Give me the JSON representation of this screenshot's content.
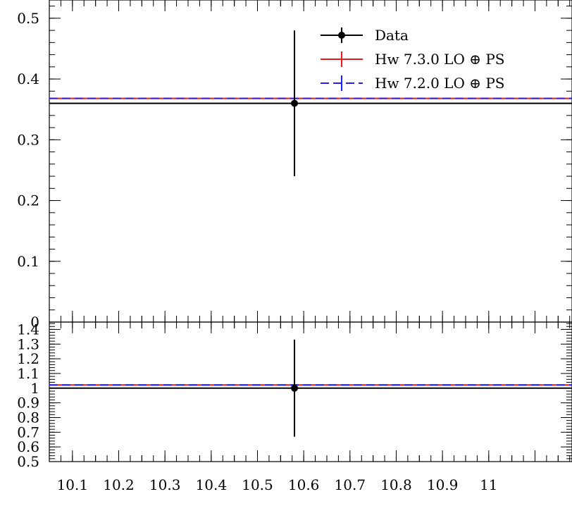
{
  "chart_data": {
    "type": "line",
    "x": {
      "range": [
        10.05,
        11.18
      ],
      "ticks": [
        "10.1",
        "10.2",
        "10.3",
        "10.4",
        "10.5",
        "10.6",
        "10.7",
        "10.8",
        "10.9",
        "11"
      ]
    },
    "main_panel": {
      "ylim": [
        0,
        0.53
      ],
      "yticks": [
        "0",
        "0.1",
        "0.2",
        "0.3",
        "0.4",
        "0.5"
      ],
      "data": {
        "x": 10.58,
        "y": 0.36,
        "err_low": 0.12,
        "err_high": 0.12
      },
      "series": [
        {
          "name": "Data",
          "value": 0.36,
          "color": "#000000",
          "style": "solid"
        },
        {
          "name": "Hw 7.3.0 LO ⊕ PS",
          "value": 0.368,
          "color": "#e41a1c",
          "style": "solid"
        },
        {
          "name": "Hw 7.2.0 LO ⊕ PS",
          "value": 0.368,
          "color": "#1f1fff",
          "style": "dashed"
        }
      ]
    },
    "ratio_panel": {
      "ylim": [
        0.5,
        1.45
      ],
      "yticks": [
        "0.5",
        "0.6",
        "0.7",
        "0.8",
        "0.9",
        "1",
        "1.1",
        "1.2",
        "1.3",
        "1.4"
      ],
      "data": {
        "x": 10.58,
        "y": 1.0,
        "err_low": 0.33,
        "err_high": 0.33
      },
      "series": [
        {
          "name": "Data",
          "value": 1.0,
          "color": "#000000",
          "style": "solid"
        },
        {
          "name": "Hw 7.3.0 LO ⊕ PS",
          "value": 1.022,
          "color": "#e41a1c",
          "style": "solid"
        },
        {
          "name": "Hw 7.2.0 LO ⊕ PS",
          "value": 1.022,
          "color": "#1f1fff",
          "style": "dashed"
        }
      ]
    },
    "legend": {
      "placement": "top-right",
      "entries": [
        "Data",
        "Hw 7.3.0 LO ⊕ PS",
        "Hw 7.2.0 LO ⊕ PS"
      ]
    }
  }
}
